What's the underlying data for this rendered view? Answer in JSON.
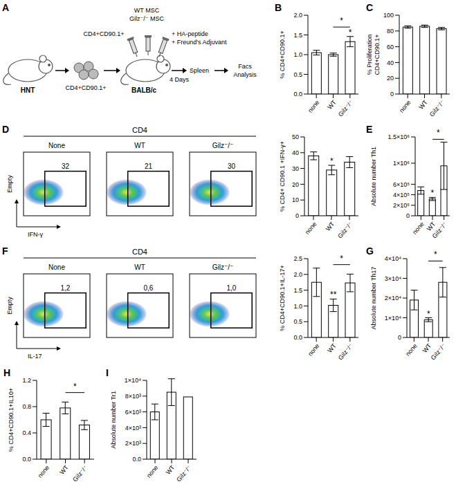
{
  "diagram": {
    "panel": "A",
    "donor": "HNT",
    "cells": "CD4+CD90.1+",
    "injected_cells": "CD4+CD90.1+",
    "msc": [
      "WT MSC",
      "Gilz⁻/⁻ MSC"
    ],
    "immunization": [
      "+ HA-peptide",
      "+ Freund's Adjuvant"
    ],
    "recipient": "BALB/c",
    "duration": "4 Days",
    "organ": "Spleen",
    "readout": [
      "Facs",
      "Analysis"
    ]
  },
  "flow_plots": [
    {
      "panel": "D",
      "header": "CD4",
      "y_label": "Empty",
      "x_label": "IFN-γ",
      "plots": [
        {
          "title": "None",
          "gate": "32"
        },
        {
          "title": "WT",
          "gate": "21"
        },
        {
          "title": "Gilz⁻/⁻",
          "gate": "30"
        }
      ]
    },
    {
      "panel": "F",
      "header": "CD4",
      "y_label": "Empty",
      "x_label": "IL-17",
      "plots": [
        {
          "title": "None",
          "gate": "1,2"
        },
        {
          "title": "WT",
          "gate": "0,6"
        },
        {
          "title": "Gilz⁻/⁻",
          "gate": "1,0"
        }
      ]
    }
  ],
  "chart_data": [
    {
      "type": "bar",
      "panel": "B",
      "y_label": "% CD4+CD90.1+",
      "categories": [
        "none",
        "WT",
        "Gilz⁻/⁻"
      ],
      "values": [
        1.05,
        1.0,
        1.33
      ],
      "errors": [
        0.06,
        0.04,
        0.13
      ],
      "color": "#ffffff",
      "ylim": [
        0,
        2
      ],
      "yticks": [
        {
          "value": 0,
          "label": "0.0"
        },
        0.5,
        {
          "value": 1,
          "label": "1.0"
        },
        1.5,
        {
          "value": 2,
          "label": "2.0"
        }
      ],
      "annotations": [
        {
          "text": "*",
          "category": "Gilz⁻/⁻"
        }
      ],
      "brackets": [
        {
          "text": "*",
          "from": "WT",
          "to": "Gilz⁻/⁻"
        }
      ]
    },
    {
      "type": "bar",
      "panel": "C",
      "y_label": "% Proliferation CD4+CD90.1+",
      "categories": [
        "none",
        "WT",
        "Gilz⁻/⁻"
      ],
      "values": [
        85,
        86,
        83
      ],
      "errors": [
        1.5,
        1.5,
        1.5
      ],
      "color": "#ffffff",
      "ylim": [
        0,
        100
      ],
      "yticks": [
        0,
        20,
        40,
        60,
        80,
        100
      ],
      "annotations": [],
      "brackets": []
    },
    {
      "type": "bar",
      "y_label": "% CD4+ CD90.1 +IFN-γ+",
      "categories": [
        "none",
        "WT",
        "Gilz⁻/⁻"
      ],
      "values": [
        38,
        29,
        34
      ],
      "errors": [
        2.5,
        3,
        3.5
      ],
      "color": "#ffffff",
      "ylim": [
        0,
        50
      ],
      "yticks": [
        0,
        10,
        20,
        30,
        40,
        50
      ],
      "annotations": [
        {
          "text": "*",
          "category": "WT"
        }
      ],
      "brackets": []
    },
    {
      "type": "bar",
      "panel": "E",
      "y_label": "Absolute number Th1",
      "categories": [
        "none",
        "WT",
        "Gilz⁻/⁻"
      ],
      "values": [
        480000,
        320000,
        950000
      ],
      "errors": [
        70000,
        30000,
        450000
      ],
      "color": "#ffffff",
      "ylim": [
        0,
        1500000
      ],
      "yticks": [
        0,
        {
          "value": 200000,
          "label": "2×10⁵"
        },
        {
          "value": 400000,
          "label": "4×10⁵"
        },
        {
          "value": 600000,
          "label": "6×10⁵"
        },
        {
          "value": 1000000,
          "label": "1×10⁶"
        },
        {
          "value": 1500000,
          "label": "1.5×10⁶"
        }
      ],
      "annotations": [
        {
          "text": "*",
          "category": "WT"
        }
      ],
      "brackets": [
        {
          "text": "*",
          "from": "WT",
          "to": "Gilz⁻/⁻"
        }
      ]
    },
    {
      "type": "bar",
      "y_label": "% CD4+CD90.1+IL-17+",
      "categories": [
        "none",
        "WT",
        "Gilz⁻/⁻"
      ],
      "values": [
        1.75,
        1.02,
        1.73
      ],
      "errors": [
        0.45,
        0.2,
        0.28
      ],
      "color": "#ffffff",
      "ylim": [
        0,
        2.5
      ],
      "yticks": [
        {
          "value": 0,
          "label": "0.0"
        },
        0.5,
        {
          "value": 1,
          "label": "1.0"
        },
        1.5,
        {
          "value": 2,
          "label": "2.0"
        },
        2.5
      ],
      "annotations": [
        {
          "text": "**",
          "category": "WT"
        }
      ],
      "brackets": [
        {
          "text": "*",
          "from": "WT",
          "to": "Gilz⁻/⁻"
        }
      ]
    },
    {
      "type": "bar",
      "panel": "G",
      "y_label": "Absolute number Th17",
      "categories": [
        "none",
        "WT",
        "Gilz⁻/⁻"
      ],
      "values": [
        19000,
        9000,
        28000
      ],
      "errors": [
        5000,
        1000,
        7500
      ],
      "color": "#ffffff",
      "ylim": [
        0,
        40000
      ],
      "yticks": [
        0,
        {
          "value": 10000,
          "label": "1×10⁴"
        },
        {
          "value": 20000,
          "label": "2×10⁴"
        },
        {
          "value": 30000,
          "label": "3×10⁴"
        },
        {
          "value": 40000,
          "label": "4×10⁴"
        }
      ],
      "annotations": [
        {
          "text": "*",
          "category": "WT"
        }
      ],
      "brackets": [
        {
          "text": "*",
          "from": "WT",
          "to": "Gilz⁻/⁻"
        }
      ]
    },
    {
      "type": "bar",
      "panel": "H",
      "y_label": "% CD4+CD90.1+IL10+",
      "categories": [
        "none",
        "WT",
        "Gilz⁻/⁻"
      ],
      "values": [
        0.6,
        0.78,
        0.52
      ],
      "errors": [
        0.1,
        0.09,
        0.07
      ],
      "color": "#ffffff",
      "ylim": [
        0,
        1.2
      ],
      "yticks": [
        {
          "value": 0,
          "label": "0.0"
        },
        0.4,
        0.8,
        1.2
      ],
      "annotations": [],
      "brackets": [
        {
          "text": "*",
          "from": "WT",
          "to": "Gilz⁻/⁻"
        }
      ]
    },
    {
      "type": "bar",
      "panel": "I",
      "y_label": "Absolute number Tr1",
      "categories": [
        "none",
        "WT",
        "Gilz⁻/⁻"
      ],
      "values": [
        6000,
        8500,
        7900
      ],
      "errors": [
        1000,
        1700,
        0
      ],
      "color": "#ffffff",
      "ylim": [
        0,
        10000
      ],
      "yticks": [
        {
          "value": 0,
          "label": "0.0"
        },
        {
          "value": 2000,
          "label": "2×10³"
        },
        {
          "value": 4000,
          "label": "4×10³"
        },
        {
          "value": 6000,
          "label": "6×10³"
        },
        {
          "value": 8000,
          "label": "8×10³"
        },
        {
          "value": 10000,
          "label": "1×10⁴"
        }
      ],
      "annotations": [],
      "brackets": []
    }
  ]
}
